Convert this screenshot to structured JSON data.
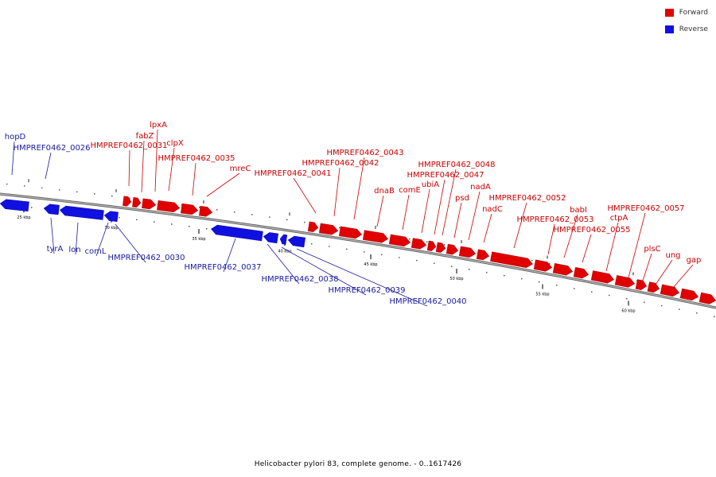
{
  "caption": "Helicobacter pylori 83, complete genome. - 0..1617426",
  "legend": [
    {
      "label": "Forward",
      "color": "#e00000"
    },
    {
      "label": "Reverse",
      "color": "#1010e0"
    }
  ],
  "colors": {
    "forward_fill": "#e00000",
    "forward_label": "#cc0000",
    "reverse_fill": "#1010e0",
    "reverse_label": "#1a1aa0",
    "backbone": "#888888"
  },
  "ticks": [
    "25 kbp",
    "30 kbp",
    "35 kbp",
    "40 kbp",
    "45 kbp",
    "50 kbp",
    "55 kbp",
    "60 kbp"
  ],
  "genes": {
    "forward": [
      "lpxA",
      "fabZ",
      "HMPREF0462_0031",
      "clpX",
      "HMPREF0462_0035",
      "mreC",
      "HMPREF0462_0041",
      "HMPREF0462_0043",
      "HMPREF0462_0042",
      "dnaB",
      "comE",
      "HMPREF0462_0048",
      "HMPREF0462_0047",
      "ubiA",
      "psd",
      "nadA",
      "nadC",
      "HMPREF0462_0052",
      "babI",
      "HMPREF0462_0053",
      "HMPREF0462_0055",
      "HMPREF0462_0057",
      "ctpA",
      "plsC",
      "ung",
      "gap"
    ],
    "reverse": [
      "hopD",
      "HMPREF0462_0026",
      "tyrA",
      "lon",
      "comL",
      "HMPREF0462_0030",
      "HMPREF0462_0037",
      "HMPREF0462_0038",
      "HMPREF0462_0039",
      "HMPREF0462_0040"
    ]
  }
}
